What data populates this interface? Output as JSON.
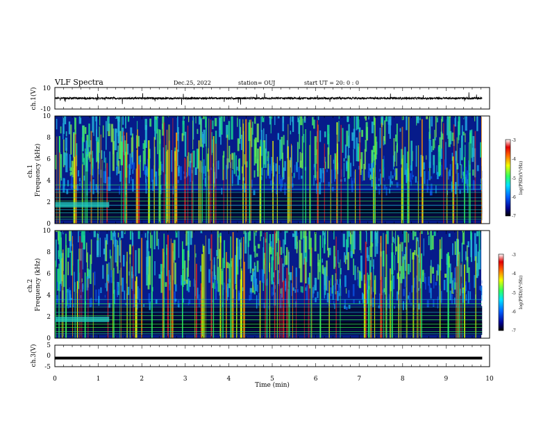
{
  "header": {
    "title": "VLF Spectra",
    "date": "Dec.25, 2022",
    "station": "station= OUJ",
    "start": "start  UT =   20: 0  : 0"
  },
  "chart_data": [
    {
      "type": "line",
      "ylabel": "ch.1(V)",
      "xlim": [
        0,
        10
      ],
      "ylim": [
        -10,
        10
      ],
      "yticks": [
        "10",
        "-10"
      ],
      "series": [
        {
          "baseline": 0,
          "approx_noise_amplitude": 1.0,
          "data_x_end": 9.83
        }
      ]
    },
    {
      "type": "heatmap",
      "ylabel": "ch.1\nFrequency (kHz)",
      "xlim": [
        0,
        10
      ],
      "ylim": [
        0,
        10
      ],
      "yticks": [
        "0",
        "2",
        "4",
        "6",
        "8",
        "10"
      ],
      "colorbar": {
        "label": "log(PSD)(V²/Hz)",
        "range": [
          -7,
          -3
        ],
        "ticks": [
          "-3",
          "-4",
          "-5",
          "-6",
          "-7"
        ]
      }
    },
    {
      "type": "heatmap",
      "ylabel": "ch.2\nFrequency (kHz)",
      "xlim": [
        0,
        10
      ],
      "ylim": [
        0,
        10
      ],
      "yticks": [
        "0",
        "2",
        "4",
        "6",
        "8",
        "10"
      ],
      "colorbar": {
        "label": "log(PSD)(V²/Hz)",
        "range": [
          -7,
          -3
        ],
        "ticks": [
          "-3",
          "-4",
          "-5",
          "-6",
          "-7"
        ]
      }
    },
    {
      "type": "line",
      "ylabel": "ch.3(V)",
      "xlim": [
        0,
        10
      ],
      "ylim": [
        -5,
        5
      ],
      "yticks": [
        "5",
        "0",
        "-5"
      ],
      "series": [
        {
          "baseline": -1,
          "approx_noise_amplitude": 0,
          "data_x_end": 9.83
        }
      ]
    }
  ],
  "xaxis": {
    "label": "Time (min)",
    "ticks": [
      "0",
      "1",
      "2",
      "3",
      "4",
      "5",
      "6",
      "7",
      "8",
      "9",
      "10"
    ]
  }
}
